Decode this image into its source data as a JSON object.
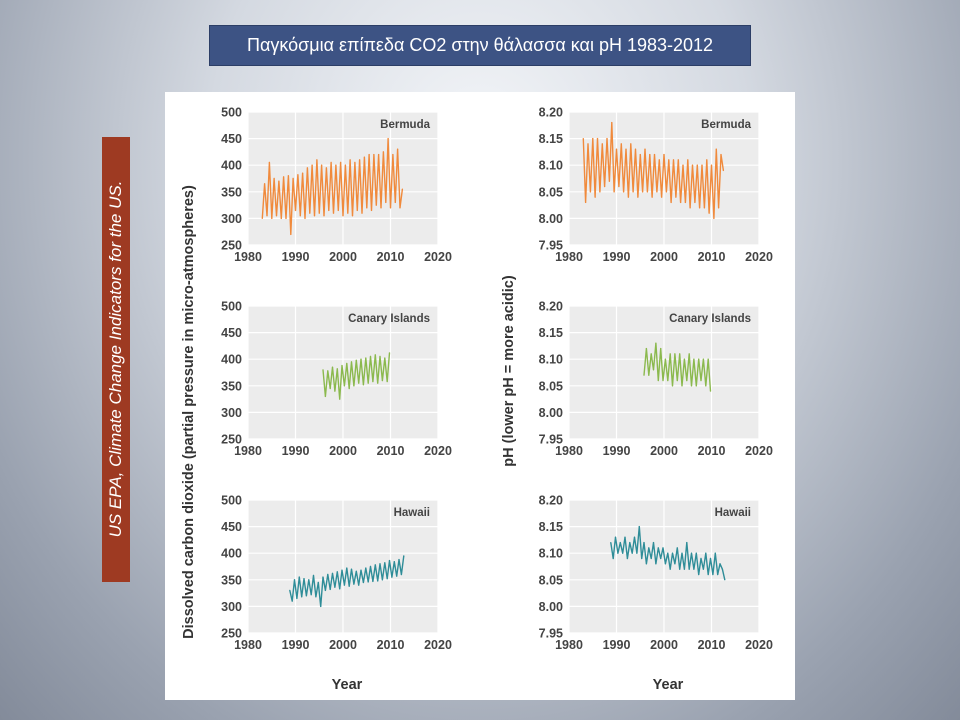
{
  "slide": {
    "title": "Παγκόσμια επίπεδα CO2 στην θάλασσα και pH 1983-2012",
    "source": "US EPA, Climate Change Indicators for the US."
  },
  "colors": {
    "bermuda": "#f08a3c",
    "canary": "#8bb94e",
    "hawaii": "#2f8d98",
    "plot_bg": "#ececec",
    "grid": "#ffffff"
  },
  "axes": {
    "co2_ylabel": "Dissolved carbon dioxide (partial pressure in micro-atmospheres)",
    "ph_ylabel": "pH (lower pH = more acidic)",
    "xlabel": "Year"
  },
  "chart_data": [
    {
      "type": "line",
      "id": "co2-bermuda",
      "label": "Bermuda",
      "color": "#f08a3c",
      "xlim": [
        1980,
        2020
      ],
      "ylim": [
        250,
        500
      ],
      "xticks": [
        1980,
        1990,
        2000,
        2010,
        2020
      ],
      "yticks": [
        250,
        300,
        350,
        400,
        450,
        500
      ],
      "x": [
        1983.0,
        1983.5,
        1984.0,
        1984.5,
        1985.0,
        1985.5,
        1986.0,
        1986.5,
        1987.0,
        1987.5,
        1988.0,
        1988.5,
        1989.0,
        1989.5,
        1990.0,
        1990.5,
        1991.0,
        1991.5,
        1992.0,
        1992.5,
        1993.0,
        1993.5,
        1994.0,
        1994.5,
        1995.0,
        1995.5,
        1996.0,
        1996.5,
        1997.0,
        1997.5,
        1998.0,
        1998.5,
        1999.0,
        1999.5,
        2000.0,
        2000.5,
        2001.0,
        2001.5,
        2002.0,
        2002.5,
        2003.0,
        2003.5,
        2004.0,
        2004.5,
        2005.0,
        2005.5,
        2006.0,
        2006.5,
        2007.0,
        2007.5,
        2008.0,
        2008.5,
        2009.0,
        2009.5,
        2010.0,
        2010.5,
        2011.0,
        2011.5,
        2012.0,
        2012.5
      ],
      "y": [
        300,
        365,
        305,
        405,
        300,
        375,
        305,
        370,
        300,
        378,
        300,
        380,
        270,
        375,
        315,
        382,
        305,
        385,
        300,
        395,
        310,
        400,
        305,
        410,
        310,
        400,
        305,
        395,
        315,
        405,
        310,
        400,
        315,
        405,
        305,
        400,
        310,
        410,
        305,
        405,
        315,
        410,
        310,
        415,
        320,
        420,
        315,
        420,
        325,
        420,
        320,
        425,
        330,
        450,
        320,
        420,
        330,
        430,
        320,
        355
      ]
    },
    {
      "type": "line",
      "id": "co2-canary",
      "label": "Canary Islands",
      "color": "#8bb94e",
      "xlim": [
        1980,
        2020
      ],
      "ylim": [
        250,
        500
      ],
      "xticks": [
        1980,
        1990,
        2000,
        2010,
        2020
      ],
      "yticks": [
        250,
        300,
        350,
        400,
        450,
        500
      ],
      "x": [
        1995.8,
        1996.3,
        1996.8,
        1997.3,
        1997.8,
        1998.3,
        1998.8,
        1999.3,
        1999.8,
        2000.3,
        2000.8,
        2001.3,
        2001.8,
        2002.3,
        2002.8,
        2003.3,
        2003.8,
        2004.3,
        2004.8,
        2005.3,
        2005.8,
        2006.3,
        2006.8,
        2007.3,
        2007.8,
        2008.3,
        2008.8,
        2009.3,
        2009.8
      ],
      "y": [
        380,
        330,
        378,
        345,
        385,
        340,
        382,
        325,
        388,
        350,
        392,
        345,
        395,
        350,
        398,
        355,
        400,
        352,
        402,
        355,
        405,
        358,
        408,
        355,
        405,
        360,
        402,
        358,
        412
      ]
    },
    {
      "type": "line",
      "id": "co2-hawaii",
      "label": "Hawaii",
      "color": "#2f8d98",
      "xlim": [
        1980,
        2020
      ],
      "ylim": [
        250,
        500
      ],
      "xticks": [
        1980,
        1990,
        2000,
        2010,
        2020
      ],
      "yticks": [
        250,
        300,
        350,
        400,
        450,
        500
      ],
      "x": [
        1988.8,
        1989.3,
        1989.8,
        1990.3,
        1990.8,
        1991.3,
        1991.8,
        1992.3,
        1992.8,
        1993.3,
        1993.8,
        1994.3,
        1994.8,
        1995.3,
        1995.8,
        1996.3,
        1996.8,
        1997.3,
        1997.8,
        1998.3,
        1998.8,
        1999.3,
        1999.8,
        2000.3,
        2000.8,
        2001.3,
        2001.8,
        2002.3,
        2002.8,
        2003.3,
        2003.8,
        2004.3,
        2004.8,
        2005.3,
        2005.8,
        2006.3,
        2006.8,
        2007.3,
        2007.8,
        2008.3,
        2008.8,
        2009.3,
        2009.8,
        2010.3,
        2010.8,
        2011.3,
        2011.8,
        2012.3,
        2012.8
      ],
      "y": [
        330,
        310,
        350,
        315,
        355,
        318,
        352,
        320,
        350,
        322,
        358,
        318,
        345,
        300,
        355,
        330,
        360,
        332,
        362,
        336,
        365,
        333,
        368,
        340,
        372,
        338,
        370,
        342,
        366,
        340,
        368,
        345,
        372,
        346,
        375,
        347,
        378,
        348,
        380,
        350,
        382,
        352,
        386,
        355,
        384,
        357,
        388,
        360,
        395
      ]
    },
    {
      "type": "line",
      "id": "ph-bermuda",
      "label": "Bermuda",
      "color": "#f08a3c",
      "xlim": [
        1980,
        2020
      ],
      "ylim": [
        7.95,
        8.2
      ],
      "xticks": [
        1980,
        1990,
        2000,
        2010,
        2020
      ],
      "yticks": [
        7.95,
        8.0,
        8.05,
        8.1,
        8.15,
        8.2
      ],
      "x": [
        1983.0,
        1983.5,
        1984.0,
        1984.5,
        1985.0,
        1985.5,
        1986.0,
        1986.5,
        1987.0,
        1987.5,
        1988.0,
        1988.5,
        1989.0,
        1989.5,
        1990.0,
        1990.5,
        1991.0,
        1991.5,
        1992.0,
        1992.5,
        1993.0,
        1993.5,
        1994.0,
        1994.5,
        1995.0,
        1995.5,
        1996.0,
        1996.5,
        1997.0,
        1997.5,
        1998.0,
        1998.5,
        1999.0,
        1999.5,
        2000.0,
        2000.5,
        2001.0,
        2001.5,
        2002.0,
        2002.5,
        2003.0,
        2003.5,
        2004.0,
        2004.5,
        2005.0,
        2005.5,
        2006.0,
        2006.5,
        2007.0,
        2007.5,
        2008.0,
        2008.5,
        2009.0,
        2009.5,
        2010.0,
        2010.5,
        2011.0,
        2011.5,
        2012.0,
        2012.5
      ],
      "y": [
        8.15,
        8.03,
        8.14,
        8.05,
        8.15,
        8.04,
        8.15,
        8.05,
        8.14,
        8.06,
        8.15,
        8.07,
        8.18,
        8.05,
        8.13,
        8.06,
        8.14,
        8.05,
        8.13,
        8.04,
        8.14,
        8.05,
        8.13,
        8.04,
        8.12,
        8.05,
        8.13,
        8.05,
        8.12,
        8.04,
        8.12,
        8.05,
        8.11,
        8.04,
        8.12,
        8.05,
        8.11,
        8.03,
        8.11,
        8.04,
        8.11,
        8.03,
        8.1,
        8.03,
        8.11,
        8.02,
        8.1,
        8.03,
        8.1,
        8.02,
        8.1,
        8.02,
        8.11,
        8.01,
        8.1,
        8.0,
        8.13,
        8.02,
        8.12,
        8.09
      ]
    },
    {
      "type": "line",
      "id": "ph-canary",
      "label": "Canary Islands",
      "color": "#8bb94e",
      "xlim": [
        1980,
        2020
      ],
      "ylim": [
        7.95,
        8.2
      ],
      "xticks": [
        1980,
        1990,
        2000,
        2010,
        2020
      ],
      "yticks": [
        7.95,
        8.0,
        8.05,
        8.1,
        8.15,
        8.2
      ],
      "x": [
        1995.8,
        1996.3,
        1996.8,
        1997.3,
        1997.8,
        1998.3,
        1998.8,
        1999.3,
        1999.8,
        2000.3,
        2000.8,
        2001.3,
        2001.8,
        2002.3,
        2002.8,
        2003.3,
        2003.8,
        2004.3,
        2004.8,
        2005.3,
        2005.8,
        2006.3,
        2006.8,
        2007.3,
        2007.8,
        2008.3,
        2008.8,
        2009.3,
        2009.8
      ],
      "y": [
        8.07,
        8.12,
        8.07,
        8.11,
        8.08,
        8.13,
        8.06,
        8.12,
        8.06,
        8.1,
        8.06,
        8.11,
        8.05,
        8.11,
        8.06,
        8.11,
        8.05,
        8.1,
        8.06,
        8.11,
        8.05,
        8.1,
        8.05,
        8.1,
        8.06,
        8.1,
        8.05,
        8.1,
        8.04
      ]
    },
    {
      "type": "line",
      "id": "ph-hawaii",
      "label": "Hawaii",
      "color": "#2f8d98",
      "xlim": [
        1980,
        2020
      ],
      "ylim": [
        7.95,
        8.2
      ],
      "xticks": [
        1980,
        1990,
        2000,
        2010,
        2020
      ],
      "yticks": [
        7.95,
        8.0,
        8.05,
        8.1,
        8.15,
        8.2
      ],
      "x": [
        1988.8,
        1989.3,
        1989.8,
        1990.3,
        1990.8,
        1991.3,
        1991.8,
        1992.3,
        1992.8,
        1993.3,
        1993.8,
        1994.3,
        1994.8,
        1995.3,
        1995.8,
        1996.3,
        1996.8,
        1997.3,
        1997.8,
        1998.3,
        1998.8,
        1999.3,
        1999.8,
        2000.3,
        2000.8,
        2001.3,
        2001.8,
        2002.3,
        2002.8,
        2003.3,
        2003.8,
        2004.3,
        2004.8,
        2005.3,
        2005.8,
        2006.3,
        2006.8,
        2007.3,
        2007.8,
        2008.3,
        2008.8,
        2009.3,
        2009.8,
        2010.3,
        2010.8,
        2011.3,
        2011.8,
        2012.3,
        2012.8
      ],
      "y": [
        8.12,
        8.09,
        8.13,
        8.1,
        8.12,
        8.1,
        8.13,
        8.09,
        8.12,
        8.1,
        8.13,
        8.1,
        8.15,
        8.09,
        8.12,
        8.08,
        8.11,
        8.09,
        8.12,
        8.08,
        8.11,
        8.09,
        8.11,
        8.08,
        8.1,
        8.07,
        8.1,
        8.08,
        8.11,
        8.07,
        8.1,
        8.07,
        8.12,
        8.07,
        8.1,
        8.07,
        8.1,
        8.06,
        8.09,
        8.07,
        8.1,
        8.06,
        8.09,
        8.06,
        8.1,
        8.06,
        8.08,
        8.07,
        8.05
      ]
    }
  ]
}
